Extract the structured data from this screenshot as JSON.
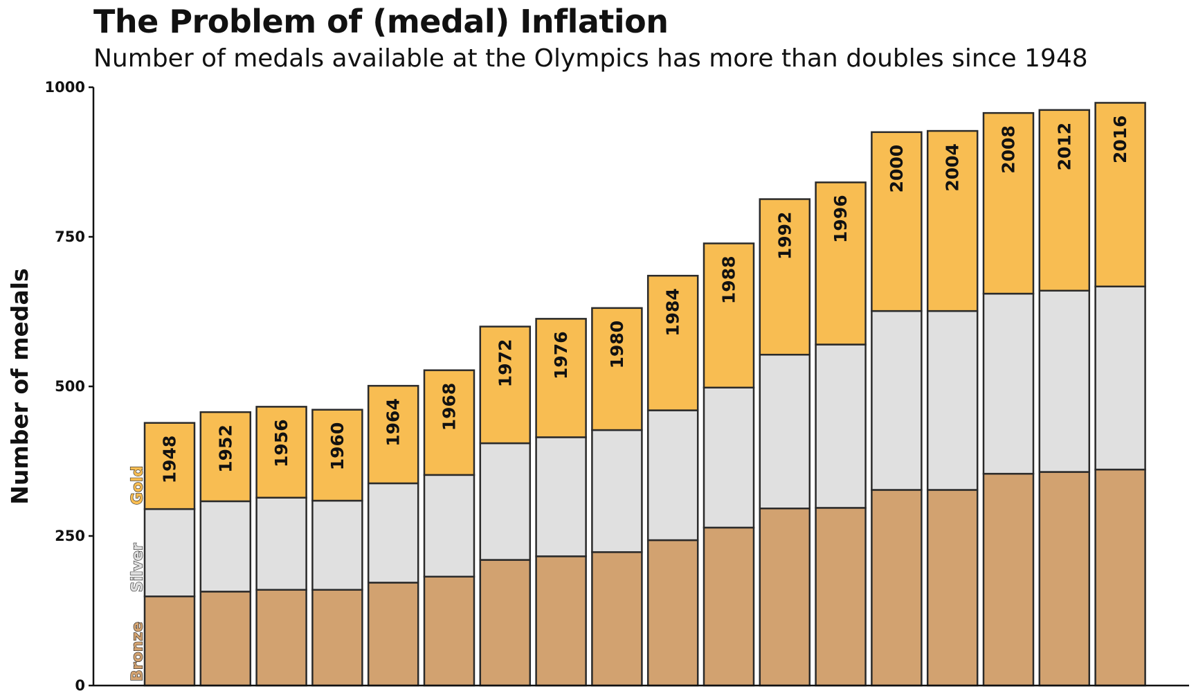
{
  "title": "The Problem of (medal) Inflation",
  "subtitle": "Number of medals available at the Olympics has more than doubles since 1948",
  "chart_data": {
    "type": "bar",
    "stacked": true,
    "ylabel": "Number of medals",
    "xlabel": "",
    "ylim": [
      0,
      1000
    ],
    "yticks": [
      0,
      250,
      500,
      750,
      1000
    ],
    "grid": false,
    "categories": [
      "1948",
      "1952",
      "1956",
      "1960",
      "1964",
      "1968",
      "1972",
      "1976",
      "1980",
      "1984",
      "1988",
      "1992",
      "1996",
      "2000",
      "2004",
      "2008",
      "2012",
      "2016"
    ],
    "series": [
      {
        "name": "Bronze",
        "color": "#D2A270",
        "values": [
          149,
          157,
          160,
          160,
          172,
          182,
          210,
          216,
          223,
          243,
          264,
          296,
          297,
          327,
          327,
          354,
          357,
          361
        ]
      },
      {
        "name": "Silver",
        "color": "#E0E0E0",
        "values": [
          146,
          151,
          154,
          149,
          166,
          170,
          195,
          199,
          204,
          217,
          234,
          257,
          273,
          299,
          299,
          301,
          303,
          306
        ]
      },
      {
        "name": "Gold",
        "color": "#F8BD52",
        "values": [
          144,
          149,
          152,
          152,
          163,
          175,
          195,
          198,
          204,
          225,
          241,
          260,
          271,
          299,
          301,
          302,
          302,
          307
        ]
      }
    ]
  }
}
